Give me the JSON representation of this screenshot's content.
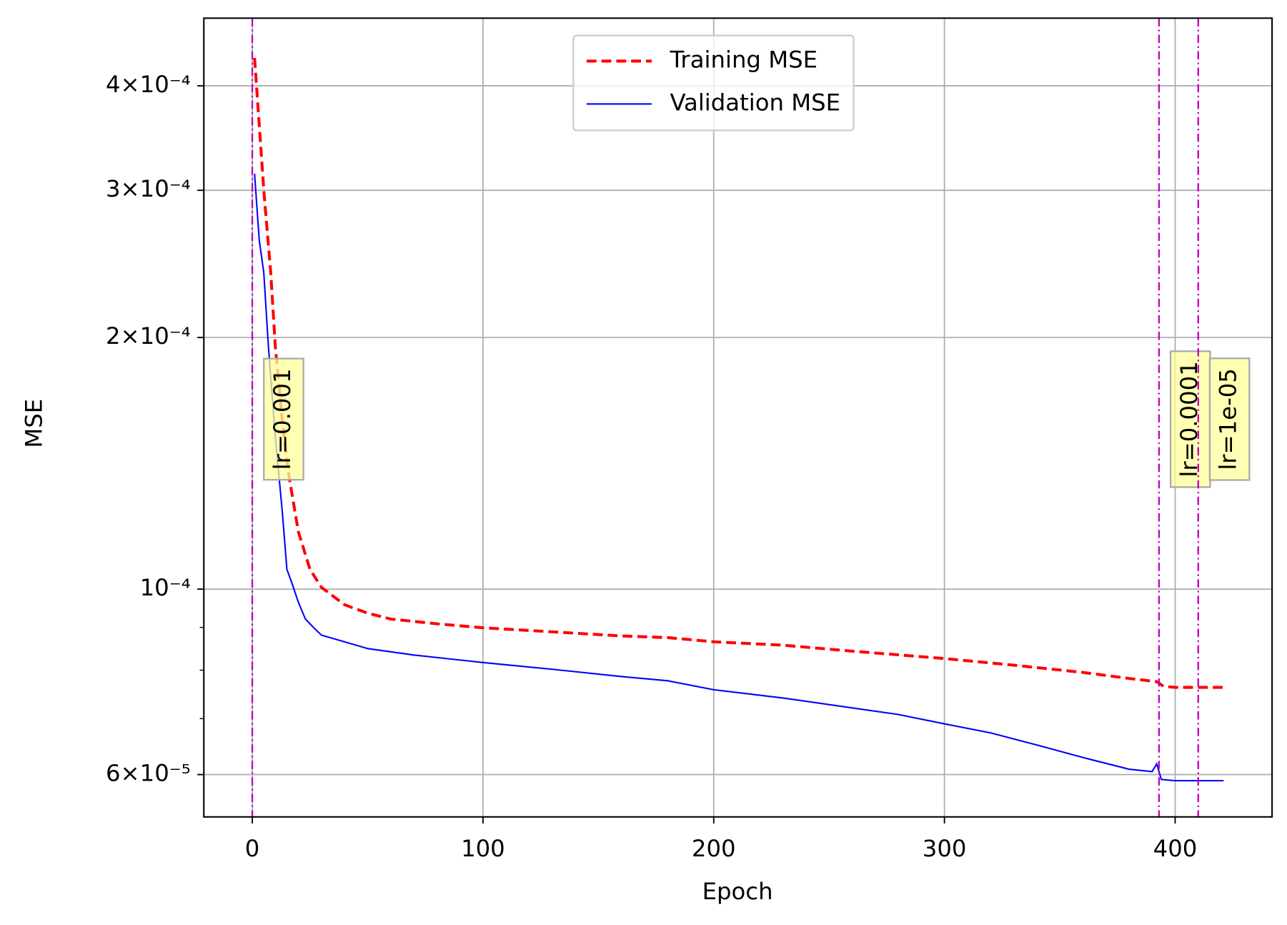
{
  "chart_data": {
    "type": "line",
    "xlabel": "Epoch",
    "ylabel": "MSE",
    "xlim": [
      -21,
      442
    ],
    "xticks": [
      0,
      100,
      200,
      300,
      400
    ],
    "ylim": [
      5.34e-05,
      0.000482
    ],
    "yscale": "log",
    "yticks": [
      {
        "value": 6e-05,
        "label": "6×10⁻⁵"
      },
      {
        "value": 0.0001,
        "label": "10⁻⁴"
      },
      {
        "value": 0.0002,
        "label": "2×10⁻⁴"
      },
      {
        "value": 0.0003,
        "label": "3×10⁻⁴"
      },
      {
        "value": 0.0004,
        "label": "4×10⁻⁴"
      }
    ],
    "yminor_ticks": [
      7e-05,
      8e-05,
      9e-05
    ],
    "grid": true,
    "legend_loc": "upper center",
    "vlines": [
      0,
      393,
      410
    ],
    "vline_color": "#c000c0",
    "annotations": [
      "lr=0.001",
      "lr=0.0001",
      "lr=1e-05"
    ],
    "series": [
      {
        "name": "Training MSE",
        "color": "#ff0000",
        "style": "dashed",
        "x": [
          1,
          3,
          5,
          8,
          10,
          13,
          16,
          20,
          25,
          30,
          40,
          50,
          60,
          80,
          100,
          130,
          160,
          180,
          200,
          230,
          260,
          300,
          330,
          360,
          380,
          392,
          395,
          400,
          421
        ],
        "values": [
          0.000432,
          0.00036,
          0.0003,
          0.000239,
          0.000195,
          0.000159,
          0.000136,
          0.000117,
          0.0001056,
          0.0001005,
          9.58e-05,
          9.36e-05,
          9.21e-05,
          9.09e-05,
          8.99e-05,
          8.89e-05,
          8.79e-05,
          8.75e-05,
          8.65e-05,
          8.57e-05,
          8.43e-05,
          8.26e-05,
          8.11e-05,
          7.95e-05,
          7.82e-05,
          7.75e-05,
          7.65e-05,
          7.63e-05,
          7.63e-05
        ]
      },
      {
        "name": "Validation MSE",
        "color": "#0000ff",
        "style": "solid",
        "x": [
          1,
          3,
          5,
          7,
          10,
          13,
          15,
          17,
          20,
          23,
          27,
          30,
          40,
          50,
          70,
          100,
          130,
          160,
          180,
          200,
          230,
          260,
          280,
          300,
          320,
          340,
          360,
          380,
          390,
          392,
          394,
          400,
          421
        ],
        "values": [
          0.000314,
          0.000262,
          0.000239,
          0.000195,
          0.000152,
          0.0001238,
          0.0001056,
          0.000102,
          9.64e-05,
          9.21e-05,
          8.97e-05,
          8.81e-05,
          8.65e-05,
          8.49e-05,
          8.34e-05,
          8.17e-05,
          8.02e-05,
          7.86e-05,
          7.77e-05,
          7.58e-05,
          7.41e-05,
          7.21e-05,
          7.08e-05,
          6.9e-05,
          6.73e-05,
          6.51e-05,
          6.29e-05,
          6.09e-05,
          6.05e-05,
          6.18e-05,
          5.92e-05,
          5.9e-05,
          5.9e-05
        ]
      }
    ]
  }
}
